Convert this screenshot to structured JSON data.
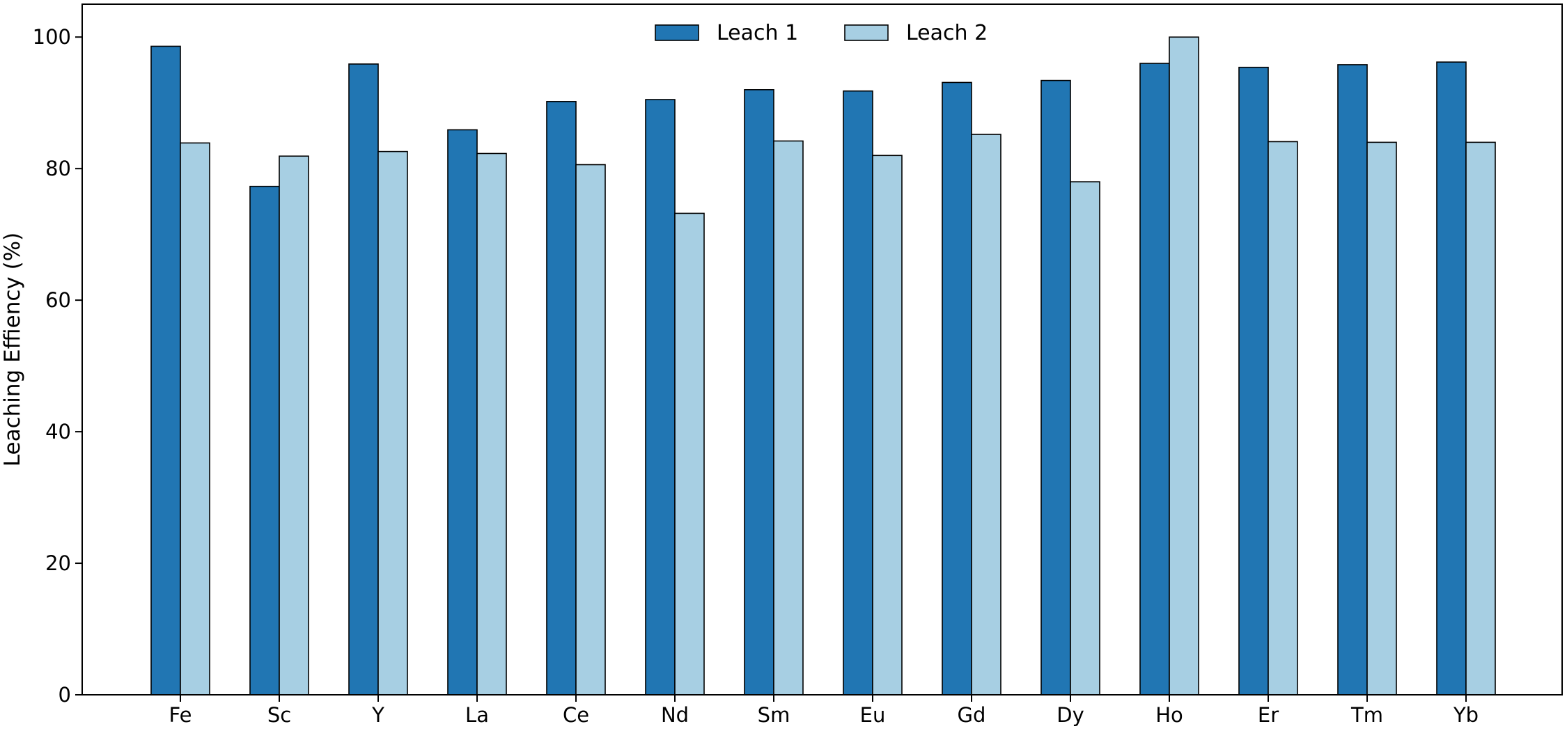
{
  "chart_data": {
    "type": "bar",
    "title": "",
    "xlabel": "",
    "ylabel": "Leaching Effiency (%)",
    "ylim": [
      0,
      105
    ],
    "yticks": [
      0,
      20,
      40,
      60,
      80,
      100
    ],
    "grid": false,
    "legend_position": "top-center",
    "categories": [
      "Fe",
      "Sc",
      "Y",
      "La",
      "Ce",
      "Nd",
      "Sm",
      "Eu",
      "Gd",
      "Dy",
      "Ho",
      "Er",
      "Tm",
      "Yb"
    ],
    "series": [
      {
        "name": "Leach 1",
        "color": "#2176b3",
        "values": [
          98.6,
          77.3,
          95.9,
          85.9,
          90.2,
          90.5,
          92.0,
          91.8,
          93.1,
          93.4,
          96.0,
          95.4,
          95.8,
          96.2
        ]
      },
      {
        "name": "Leach 2",
        "color": "#a7cfe3",
        "values": [
          83.9,
          81.9,
          82.6,
          82.3,
          80.6,
          73.2,
          84.2,
          82.0,
          85.2,
          78.0,
          100.0,
          84.1,
          84.0,
          84.0
        ]
      }
    ]
  }
}
